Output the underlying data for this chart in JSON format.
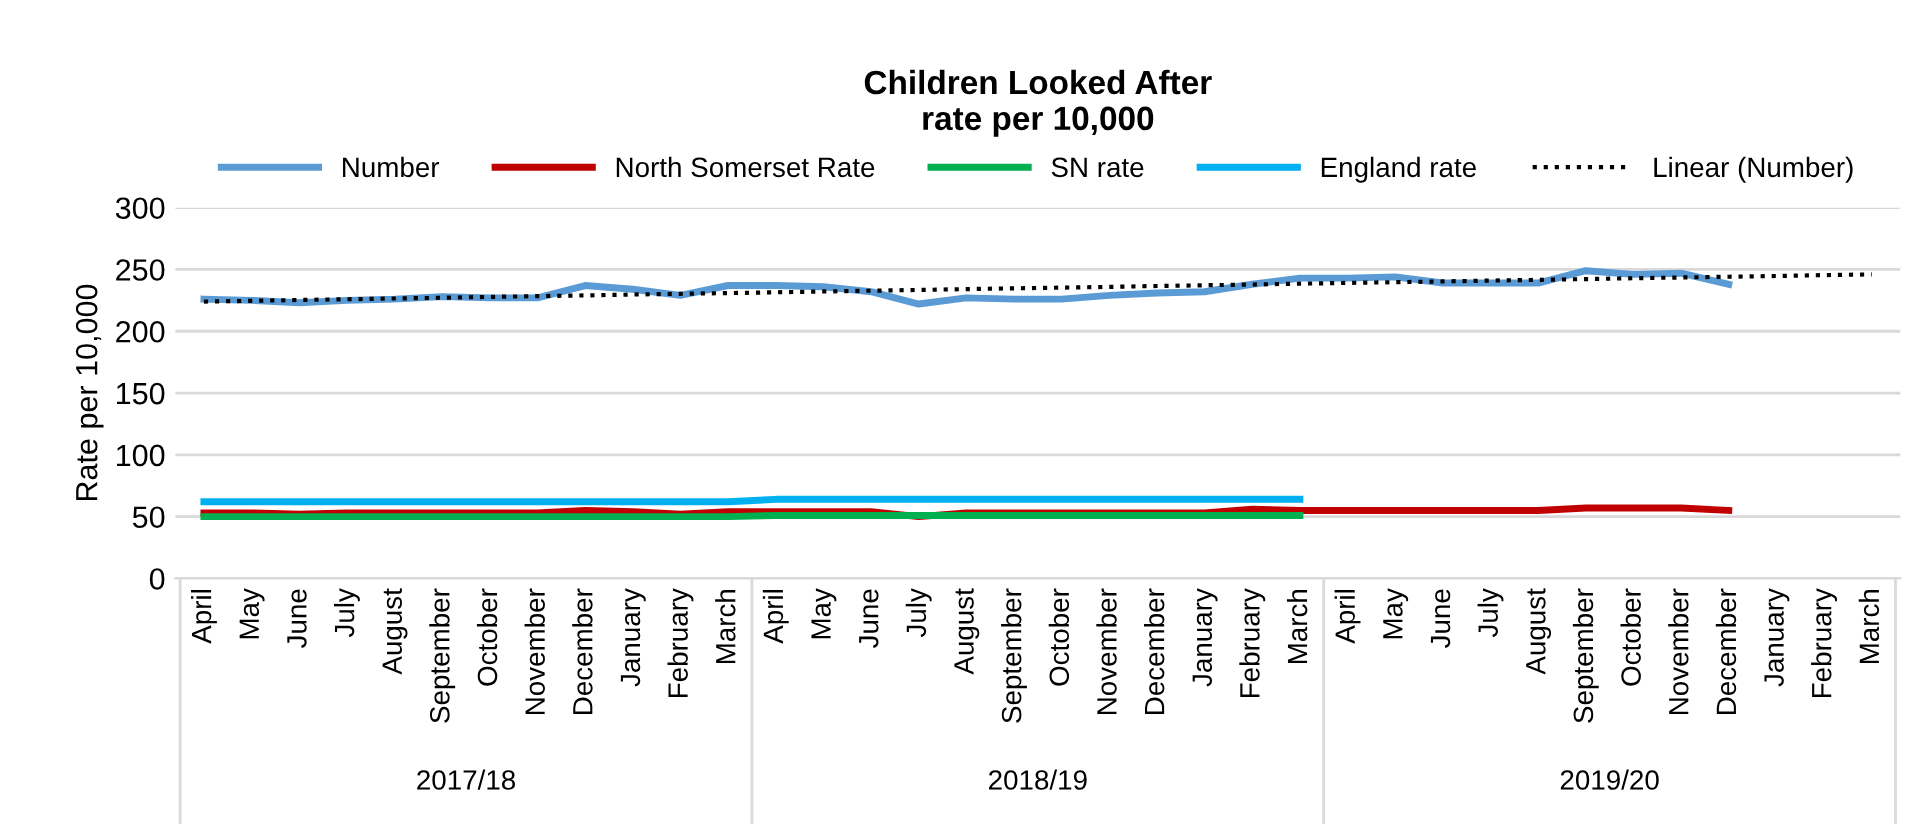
{
  "chart_data": {
    "type": "line",
    "title": "Children Looked After\nrate per 10,000",
    "ylabel": "Rate per 10,000",
    "categories": [
      "April",
      "May",
      "June",
      "July",
      "August",
      "September",
      "October",
      "November",
      "December",
      "January",
      "February",
      "March",
      "April",
      "May",
      "June",
      "July",
      "August",
      "September",
      "October",
      "November",
      "December",
      "January",
      "February",
      "March",
      "April",
      "May",
      "June",
      "July",
      "August",
      "September",
      "October",
      "November",
      "December",
      "January",
      "February",
      "March"
    ],
    "annotations": [
      "2017/18",
      "2018/19",
      "2019/20"
    ],
    "series": [
      {
        "name": "Number",
        "color": "#5b9bd5",
        "values": [
          226,
          225,
          223,
          225,
          226,
          228,
          227,
          227,
          237,
          234,
          229,
          237,
          237,
          236,
          232,
          222,
          227,
          226,
          226,
          229,
          231,
          232,
          238,
          243,
          243,
          244,
          239,
          239,
          239,
          249,
          246,
          247,
          238,
          null,
          null,
          null
        ]
      },
      {
        "name": "North Somerset Rate",
        "color": "#c00000",
        "values": [
          53,
          53,
          52,
          53,
          53,
          53,
          53,
          53,
          55,
          54,
          52,
          54,
          54,
          54,
          54,
          50,
          53,
          53,
          53,
          53,
          53,
          53,
          56,
          55,
          55,
          55,
          55,
          55,
          55,
          57,
          57,
          57,
          55,
          null,
          null,
          null
        ]
      },
      {
        "name": "SN rate",
        "color": "#00b050",
        "values": [
          50,
          50,
          50,
          50,
          50,
          50,
          50,
          50,
          50,
          50,
          50,
          50,
          51,
          51,
          51,
          51,
          51,
          51,
          51,
          51,
          51,
          51,
          51,
          51,
          null,
          null,
          null,
          null,
          null,
          null,
          null,
          null,
          null,
          null,
          null,
          null
        ]
      },
      {
        "name": "England rate",
        "color": "#00b0f0",
        "values": [
          62,
          62,
          62,
          62,
          62,
          62,
          62,
          62,
          62,
          62,
          62,
          62,
          64,
          64,
          64,
          64,
          64,
          64,
          64,
          64,
          64,
          64,
          64,
          64,
          null,
          null,
          null,
          null,
          null,
          null,
          null,
          null,
          null,
          null,
          null,
          null
        ]
      },
      {
        "name": "Linear (Number)",
        "color": "#000000",
        "line_style": "dotted",
        "values": [
          224,
          224.6,
          225.3,
          225.9,
          226.5,
          227.1,
          227.8,
          228.4,
          229,
          229.7,
          230.3,
          230.9,
          231.5,
          232.2,
          232.8,
          233.4,
          234.1,
          234.7,
          235.3,
          235.9,
          236.6,
          237.2,
          237.8,
          238.5,
          239.1,
          239.7,
          240.3,
          241,
          241.6,
          242.2,
          242.9,
          243.5,
          244.1,
          244.7,
          245.4,
          246
        ]
      }
    ],
    "ylim": [
      0,
      300
    ],
    "yticks": [
      0,
      50,
      100,
      150,
      200,
      250,
      300
    ],
    "grid": "y",
    "legend": "top",
    "line_style": "solid"
  }
}
